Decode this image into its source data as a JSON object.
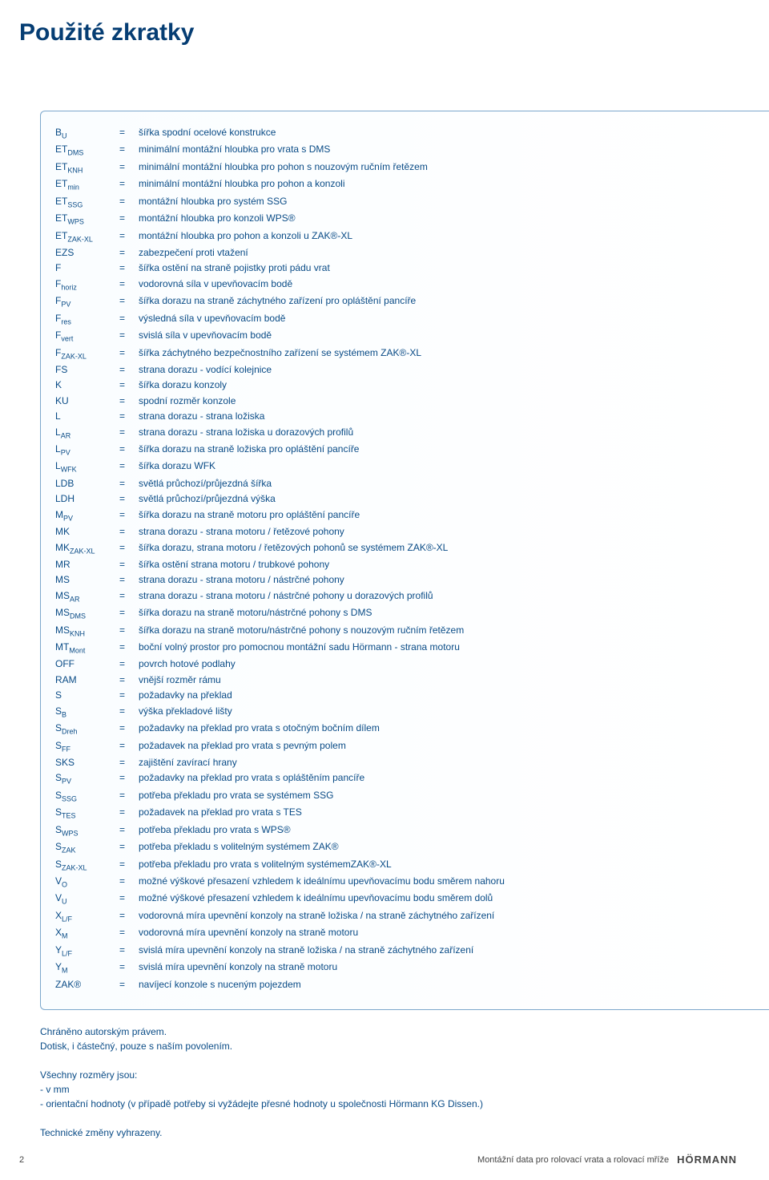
{
  "colors": {
    "ink": "#094b86",
    "ink_strong": "#053d73",
    "panel_border": "#7ca7cc",
    "page_bg": "#ffffff"
  },
  "heading": "Použité zkratky",
  "abbreviations": [
    {
      "sym": "B",
      "sub": "U",
      "def": "šířka spodní ocelové konstrukce"
    },
    {
      "sym": "ET",
      "sub": "DMS",
      "def": "minimální montážní hloubka pro vrata s DMS"
    },
    {
      "sym": "ET",
      "sub": "KNH",
      "def": "minimální montážní hloubka pro pohon s nouzovým ručním řetězem"
    },
    {
      "sym": "ET",
      "sub": "min",
      "def": "minimální montážní hloubka pro pohon a konzoli"
    },
    {
      "sym": "ET",
      "sub": "SSG",
      "def": "montážní hloubka pro systém SSG"
    },
    {
      "sym": "ET",
      "sub": "WPS",
      "def": "montážní hloubka pro konzoli  WPS®"
    },
    {
      "sym": "ET",
      "sub": "ZAK-XL",
      "def": "montážní hloubka pro pohon a konzoli u ZAK®-XL"
    },
    {
      "sym": "EZS",
      "sub": "",
      "def": "zabezpečení proti vtažení"
    },
    {
      "sym": "F",
      "sub": "",
      "def": "šířka ostění na straně pojistky proti pádu vrat"
    },
    {
      "sym": "F",
      "sub": "horiz",
      "def": "vodorovná síla v upevňovacím bodě"
    },
    {
      "sym": "F",
      "sub": "PV",
      "def": "šířka dorazu na straně záchytného zařízení pro opláštění pancíře"
    },
    {
      "sym": "F",
      "sub": "res",
      "def": "výsledná síla v upevňovacím bodě"
    },
    {
      "sym": "F",
      "sub": "vert",
      "def": "svislá síla v upevňovacím bodě"
    },
    {
      "sym": "F",
      "sub": "ZAK-XL",
      "def": "šířka záchytného bezpečnostního zařízení se systémem ZAK®-XL"
    },
    {
      "sym": "FS",
      "sub": "",
      "def": "strana dorazu - vodící kolejnice"
    },
    {
      "sym": "K",
      "sub": "",
      "def": "šířka dorazu konzoly"
    },
    {
      "sym": "KU",
      "sub": "",
      "def": "spodní rozměr konzole"
    },
    {
      "sym": "L",
      "sub": "",
      "def": "strana dorazu - strana ložiska"
    },
    {
      "sym": "L",
      "sub": "AR",
      "def": "strana dorazu - strana ložiska u dorazových profilů"
    },
    {
      "sym": "L",
      "sub": "PV",
      "def": "šířka dorazu na straně ložiska pro opláštění pancíře"
    },
    {
      "sym": "L",
      "sub": "WFK",
      "def": "šířka dorazu WFK"
    },
    {
      "sym": "LDB",
      "sub": "",
      "def": "světlá průchozí/průjezdná šířka"
    },
    {
      "sym": "LDH",
      "sub": "",
      "def": "světlá průchozí/průjezdná výška"
    },
    {
      "sym": "M",
      "sub": "PV",
      "def": "šířka dorazu na straně motoru pro opláštění pancíře"
    },
    {
      "sym": "MK",
      "sub": "",
      "def": "strana dorazu - strana motoru / řetězové pohony"
    },
    {
      "sym": "MK",
      "sub": "ZAK-XL",
      "def": "šířka dorazu, strana motoru / řetězových pohonů se systémem ZAK®-XL"
    },
    {
      "sym": "MR",
      "sub": "",
      "def": "šířka ostění strana motoru / trubkové pohony"
    },
    {
      "sym": "MS",
      "sub": "",
      "def": "strana dorazu - strana motoru / nástrčné pohony"
    },
    {
      "sym": "MS",
      "sub": "AR",
      "def": "strana dorazu - strana motoru / nástrčné pohony u dorazových profilů"
    },
    {
      "sym": "MS",
      "sub": "DMS",
      "def": "šířka dorazu na straně motoru/nástrčné pohony s DMS"
    },
    {
      "sym": "MS",
      "sub": "KNH",
      "def": "šířka dorazu na straně motoru/nástrčné pohony s nouzovým ručním řetězem"
    },
    {
      "sym": "MT",
      "sub": "Mont",
      "def": "boční volný prostor pro pomocnou montážní sadu Hörmann - strana motoru"
    },
    {
      "sym": "OFF",
      "sub": "",
      "def": "povrch hotové podlahy"
    },
    {
      "sym": "RAM",
      "sub": "",
      "def": "vnější rozměr rámu"
    },
    {
      "sym": "S",
      "sub": "",
      "def": "požadavky na překlad"
    },
    {
      "sym": "S",
      "sub": "B",
      "def": "výška překladové lišty"
    },
    {
      "sym": "S",
      "sub": "Dreh",
      "def": "požadavky na překlad pro vrata s otočným bočním dílem"
    },
    {
      "sym": "S",
      "sub": "FF",
      "def": "požadavek na překlad pro vrata s pevným polem"
    },
    {
      "sym": "SKS",
      "sub": "",
      "def": "zajištění zavírací hrany"
    },
    {
      "sym": "S",
      "sub": "PV",
      "def": "požadavky na překlad pro vrata s opláštěním pancíře"
    },
    {
      "sym": "S",
      "sub": "SSG",
      "def": "potřeba překladu pro vrata se systémem SSG"
    },
    {
      "sym": "S",
      "sub": "TES",
      "def": "požadavek na překlad pro vrata s TES"
    },
    {
      "sym": "S",
      "sub": "WPS",
      "def": "potřeba překladu pro vrata s WPS®"
    },
    {
      "sym": "S",
      "sub": "ZAK",
      "def": "potřeba překladu s volitelným systémem  ZAK®"
    },
    {
      "sym": "S",
      "sub": "ZAK-XL",
      "def": "potřeba překladu pro vrata s volitelným systémemZAK®-XL"
    },
    {
      "sym": "V",
      "sub": "O",
      "def": "možné výškové přesazení vzhledem k ideálnímu upevňovacímu bodu směrem nahoru"
    },
    {
      "sym": "V",
      "sub": "U",
      "def": "možné výškové přesazení vzhledem k ideálnímu upevňovacímu bodu směrem dolů"
    },
    {
      "sym": "X",
      "sub": "L/F",
      "def": "vodorovná míra upevnění konzoly na straně ložiska / na straně záchytného zařízení"
    },
    {
      "sym": "X",
      "sub": "M",
      "def": "vodorovná míra upevnění konzoly na straně motoru"
    },
    {
      "sym": "Y",
      "sub": "L/F",
      "def": "svislá míra upevnění konzoly na straně ložiska / na straně záchytného zařízení"
    },
    {
      "sym": "Y",
      "sub": "M",
      "def": "svislá míra upevnění konzoly na straně motoru"
    },
    {
      "sym": "ZAK®",
      "sub": "",
      "def": "navíjecí konzole s nuceným pojezdem"
    }
  ],
  "copyright_1": "Chráněno autorským právem.",
  "copyright_2": "Dotisk, i částečný, pouze s naším povolením.",
  "dims_heading": "Všechny rozměry jsou:",
  "dims_line1": "- v mm",
  "dims_line2": "- orientační hodnoty (v případě potřeby si vyžádejte přesné hodnoty  u společnosti Hörmann KG Dissen.)",
  "tech_note": "Technické změny vyhrazeny.",
  "footer": {
    "page": "2",
    "title": "Montážní data pro rolovací vrata a rolovací mříže",
    "brand": "HÖRMANN"
  }
}
